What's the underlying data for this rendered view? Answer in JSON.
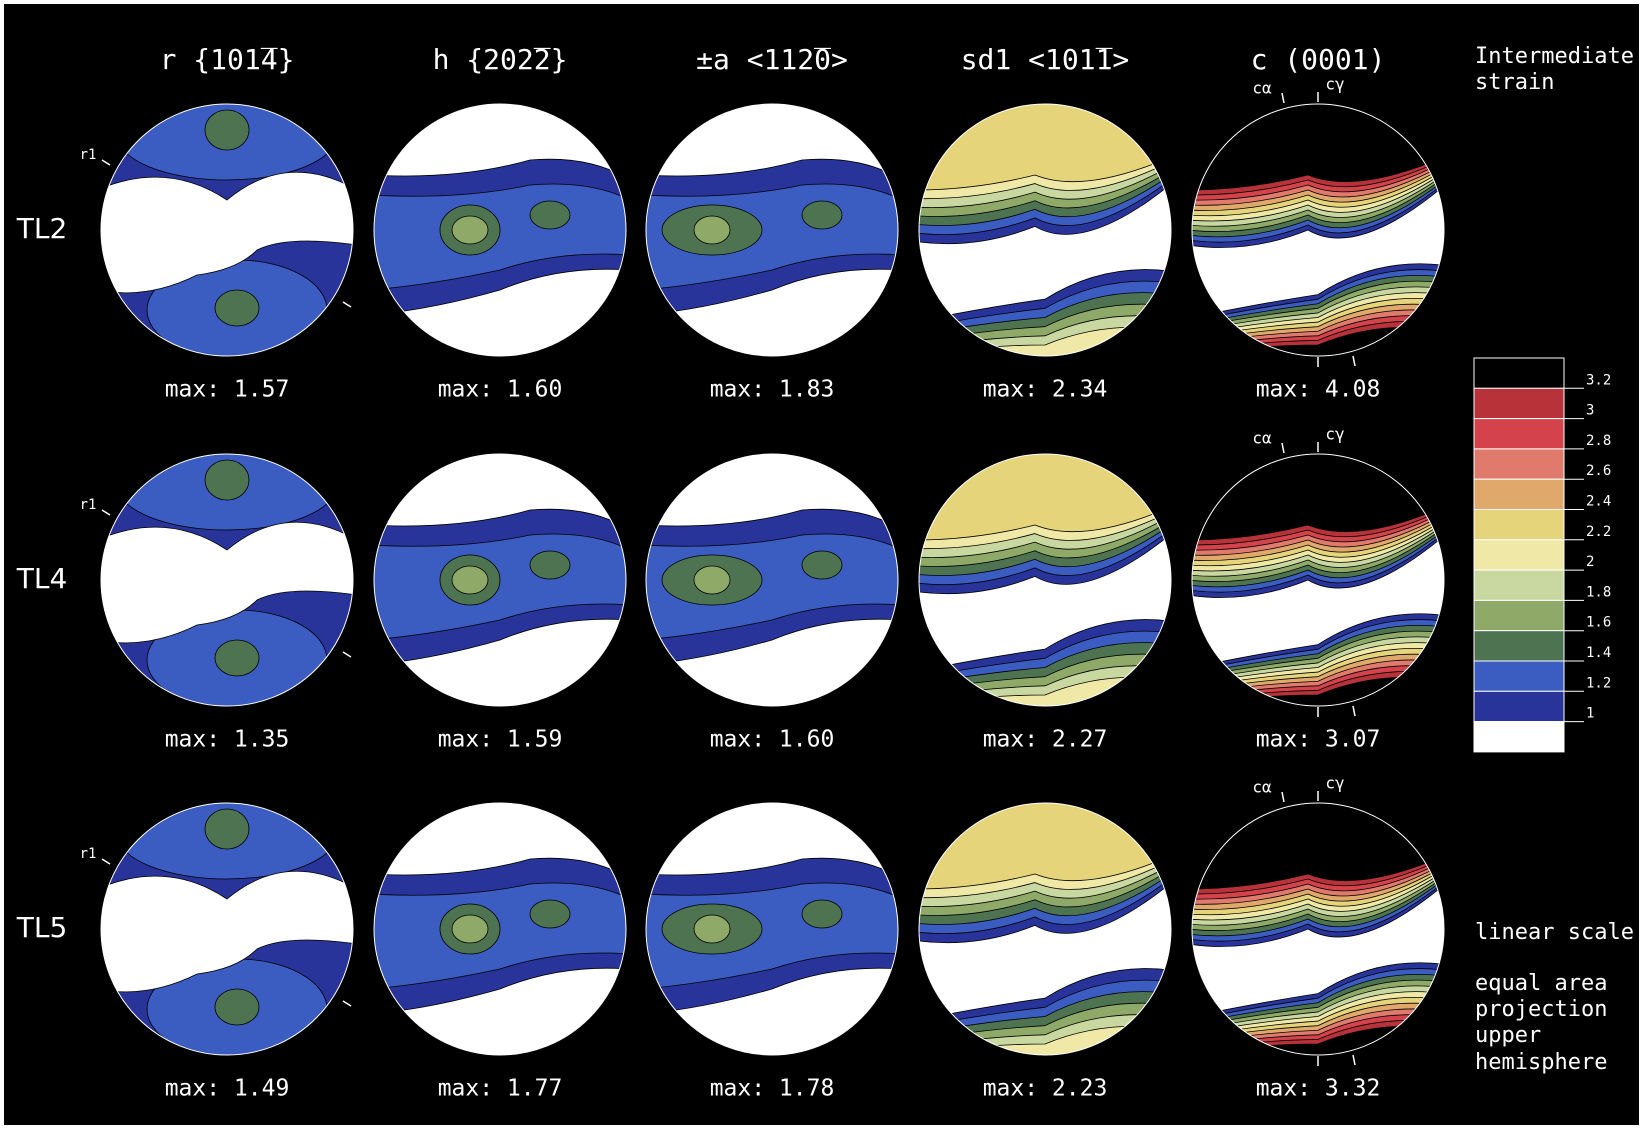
{
  "columns": [
    "r  {101̅4}",
    "h  {202̅2}",
    "±a  <112̅0>",
    "sd1  <101̅1>",
    "c  (0001)"
  ],
  "rows": [
    {
      "label": "TL2",
      "max": [
        "max: 1.57",
        "max: 1.60",
        "max: 1.83",
        "max: 2.34",
        "max: 4.08"
      ],
      "r_label": "r1",
      "c_labels": [
        "cα",
        "cγ"
      ]
    },
    {
      "label": "TL4",
      "max": [
        "max: 1.35",
        "max: 1.59",
        "max: 1.60",
        "max: 2.27",
        "max: 3.07"
      ],
      "r_label": "r1",
      "c_labels": [
        "cα",
        "cγ"
      ]
    },
    {
      "label": "TL5",
      "max": [
        "max: 1.49",
        "max: 1.77",
        "max: 1.78",
        "max: 2.23",
        "max: 3.32"
      ],
      "r_label": "r1",
      "c_labels": [
        "cα",
        "cγ"
      ]
    }
  ],
  "side_title": [
    "Intermediate",
    "strain"
  ],
  "legend": {
    "colors": [
      "#000000",
      "#b8323a",
      "#d4434c",
      "#e07a6c",
      "#e0a86a",
      "#e6d47a",
      "#efe8a6",
      "#c8d8a0",
      "#8faa68",
      "#4e7350",
      "#3b5cc0",
      "#28349a",
      "#ffffff"
    ],
    "ticks": [
      3.2,
      3,
      2.8,
      2.6,
      2.4,
      2.2,
      2,
      1.8,
      1.6,
      1.4,
      1.2,
      1
    ]
  },
  "notes": [
    "linear scale",
    "equal area",
    "projection",
    "upper",
    "hemisphere"
  ]
}
